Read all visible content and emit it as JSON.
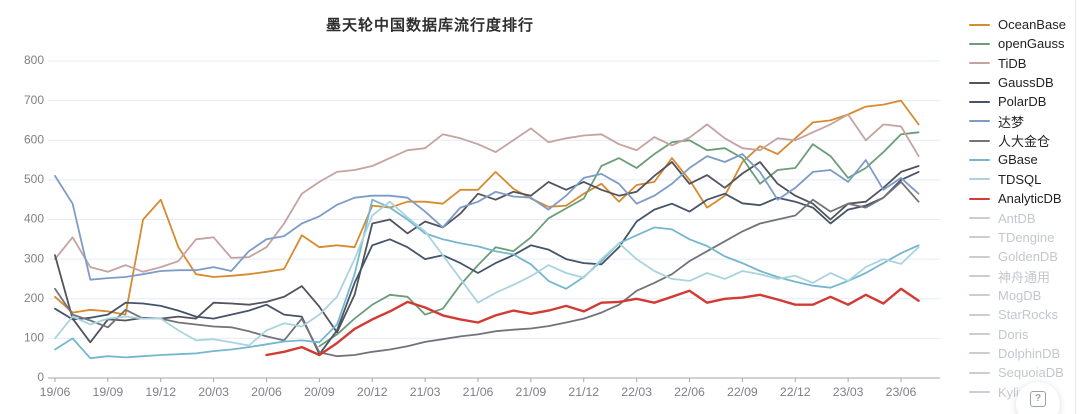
{
  "chart_data": {
    "type": "line",
    "title": "墨天轮中国数据库流行度排行",
    "x_start": "2019-06",
    "x_end": "2023-07",
    "x_monthly_points": 50,
    "x_tick_labels": [
      "19/06",
      "19/09",
      "19/12",
      "20/03",
      "20/06",
      "20/09",
      "20/12",
      "21/03",
      "21/06",
      "21/09",
      "21/12",
      "22/03",
      "22/06",
      "22/09",
      "22/12",
      "23/03",
      "23/06"
    ],
    "y_ticks": [
      0,
      100,
      200,
      300,
      400,
      500,
      600,
      700,
      800
    ],
    "ylim": [
      0,
      800
    ],
    "grid": "horizontal",
    "legend_position": "right",
    "colors": {
      "grid": "#e3ebf6",
      "axis": "#a0a4a8",
      "tick_text": "#7f8186",
      "disabled_legend": "#c9cdd4",
      "disabled_legend_text": "#c3c7cd",
      "active_legend_text": "#222222"
    },
    "series": [
      {
        "name": "OceanBase",
        "color": "#d78a2e",
        "active": true,
        "width": 1.8,
        "values": [
          205,
          165,
          172,
          168,
          160,
          400,
          450,
          330,
          262,
          255,
          258,
          262,
          268,
          275,
          360,
          330,
          335,
          330,
          435,
          430,
          445,
          445,
          440,
          475,
          475,
          520,
          478,
          453,
          432,
          435,
          465,
          490,
          445,
          487,
          495,
          555,
          500,
          430,
          460,
          545,
          585,
          565,
          605,
          645,
          650,
          665,
          685,
          690,
          700,
          640
        ]
      },
      {
        "name": "openGauss",
        "color": "#6b9e78",
        "active": true,
        "width": 1.8,
        "values": [
          null,
          null,
          null,
          null,
          null,
          null,
          null,
          null,
          null,
          null,
          null,
          null,
          null,
          null,
          null,
          80,
          110,
          150,
          185,
          210,
          205,
          160,
          175,
          235,
          285,
          330,
          320,
          355,
          403,
          428,
          453,
          535,
          555,
          530,
          565,
          595,
          600,
          575,
          580,
          555,
          490,
          525,
          530,
          590,
          560,
          505,
          530,
          570,
          615,
          620
        ]
      },
      {
        "name": "TiDB",
        "color": "#c5a3a0",
        "active": true,
        "width": 1.8,
        "values": [
          300,
          355,
          280,
          268,
          285,
          268,
          280,
          295,
          350,
          355,
          303,
          305,
          330,
          390,
          465,
          495,
          520,
          525,
          535,
          555,
          575,
          580,
          615,
          605,
          590,
          570,
          600,
          630,
          595,
          605,
          612,
          615,
          590,
          575,
          608,
          587,
          607,
          640,
          605,
          580,
          575,
          605,
          600,
          620,
          640,
          665,
          600,
          640,
          635,
          560
        ]
      },
      {
        "name": "GaussDB",
        "color": "#52535b",
        "active": true,
        "width": 1.8,
        "values": [
          310,
          150,
          90,
          148,
          145,
          152,
          150,
          155,
          150,
          190,
          188,
          185,
          192,
          205,
          232,
          180,
          115,
          210,
          390,
          400,
          365,
          395,
          380,
          415,
          465,
          450,
          470,
          460,
          495,
          475,
          495,
          475,
          460,
          470,
          510,
          545,
          490,
          512,
          480,
          516,
          545,
          490,
          460,
          440,
          400,
          440,
          445,
          480,
          520,
          535
        ]
      },
      {
        "name": "PolarDB",
        "color": "#455469",
        "active": true,
        "width": 1.8,
        "values": [
          175,
          148,
          152,
          160,
          190,
          188,
          182,
          170,
          155,
          150,
          160,
          170,
          185,
          160,
          155,
          60,
          120,
          240,
          335,
          350,
          330,
          300,
          310,
          290,
          265,
          290,
          310,
          335,
          324,
          300,
          290,
          287,
          330,
          395,
          425,
          440,
          420,
          450,
          465,
          441,
          436,
          455,
          445,
          430,
          390,
          425,
          435,
          455,
          500,
          520
        ]
      },
      {
        "name": "达梦",
        "color": "#7e9bc8",
        "active": true,
        "width": 1.8,
        "values": [
          510,
          440,
          248,
          252,
          255,
          262,
          270,
          272,
          272,
          280,
          270,
          320,
          350,
          358,
          390,
          408,
          437,
          455,
          460,
          460,
          455,
          420,
          380,
          430,
          445,
          470,
          458,
          455,
          425,
          460,
          505,
          515,
          490,
          440,
          460,
          490,
          530,
          560,
          545,
          565,
          520,
          450,
          480,
          520,
          525,
          495,
          550,
          475,
          505,
          465
        ]
      },
      {
        "name": "人大金仓",
        "color": "#73737b",
        "active": true,
        "width": 1.8,
        "values": [
          225,
          160,
          145,
          128,
          172,
          150,
          150,
          140,
          135,
          130,
          128,
          118,
          105,
          95,
          150,
          65,
          55,
          58,
          66,
          72,
          80,
          91,
          98,
          105,
          110,
          118,
          122,
          125,
          131,
          140,
          150,
          165,
          185,
          220,
          240,
          262,
          295,
          320,
          345,
          370,
          390,
          400,
          410,
          450,
          420,
          440,
          430,
          455,
          495,
          445
        ]
      },
      {
        "name": "GBase",
        "color": "#76b6ce",
        "active": true,
        "width": 1.8,
        "values": [
          72,
          100,
          50,
          55,
          52,
          55,
          58,
          60,
          62,
          68,
          72,
          78,
          85,
          92,
          95,
          90,
          135,
          262,
          450,
          430,
          400,
          365,
          350,
          340,
          332,
          320,
          312,
          287,
          245,
          225,
          255,
          295,
          340,
          360,
          380,
          375,
          350,
          333,
          307,
          290,
          270,
          255,
          243,
          233,
          228,
          245,
          265,
          290,
          315,
          335
        ]
      },
      {
        "name": "TDSQL",
        "color": "#a9d4dd",
        "active": true,
        "width": 1.8,
        "values": [
          100,
          155,
          135,
          150,
          155,
          150,
          150,
          120,
          95,
          98,
          90,
          82,
          120,
          138,
          130,
          160,
          205,
          300,
          410,
          445,
          405,
          370,
          310,
          250,
          190,
          215,
          235,
          257,
          285,
          265,
          253,
          300,
          340,
          300,
          270,
          250,
          245,
          265,
          250,
          270,
          262,
          250,
          258,
          240,
          265,
          245,
          280,
          300,
          288,
          330
        ]
      },
      {
        "name": "AnalyticDB",
        "color": "#d23b33",
        "active": true,
        "width": 2.4,
        "values": [
          null,
          null,
          null,
          null,
          null,
          null,
          null,
          null,
          null,
          null,
          null,
          null,
          58,
          66,
          78,
          58,
          88,
          124,
          148,
          168,
          192,
          178,
          158,
          148,
          140,
          158,
          170,
          162,
          170,
          182,
          168,
          190,
          192,
          200,
          190,
          205,
          220,
          190,
          200,
          203,
          210,
          198,
          185,
          185,
          205,
          185,
          210,
          188,
          225,
          195
        ]
      },
      {
        "name": "AntDB",
        "color": "#c9cdd4",
        "active": false,
        "values": []
      },
      {
        "name": "TDengine",
        "color": "#c9cdd4",
        "active": false,
        "values": []
      },
      {
        "name": "GoldenDB",
        "color": "#c9cdd4",
        "active": false,
        "values": []
      },
      {
        "name": "神舟通用",
        "color": "#c9cdd4",
        "active": false,
        "values": []
      },
      {
        "name": "MogDB",
        "color": "#c9cdd4",
        "active": false,
        "values": []
      },
      {
        "name": "StarRocks",
        "color": "#c9cdd4",
        "active": false,
        "values": []
      },
      {
        "name": "Doris",
        "color": "#c9cdd4",
        "active": false,
        "values": []
      },
      {
        "name": "DolphinDB",
        "color": "#c9cdd4",
        "active": false,
        "values": []
      },
      {
        "name": "SequoiaDB",
        "color": "#c9cdd4",
        "active": false,
        "values": []
      },
      {
        "name": "Kyligence",
        "color": "#c9cdd4",
        "active": false,
        "values": []
      }
    ]
  },
  "help_button": {
    "label": "?"
  }
}
